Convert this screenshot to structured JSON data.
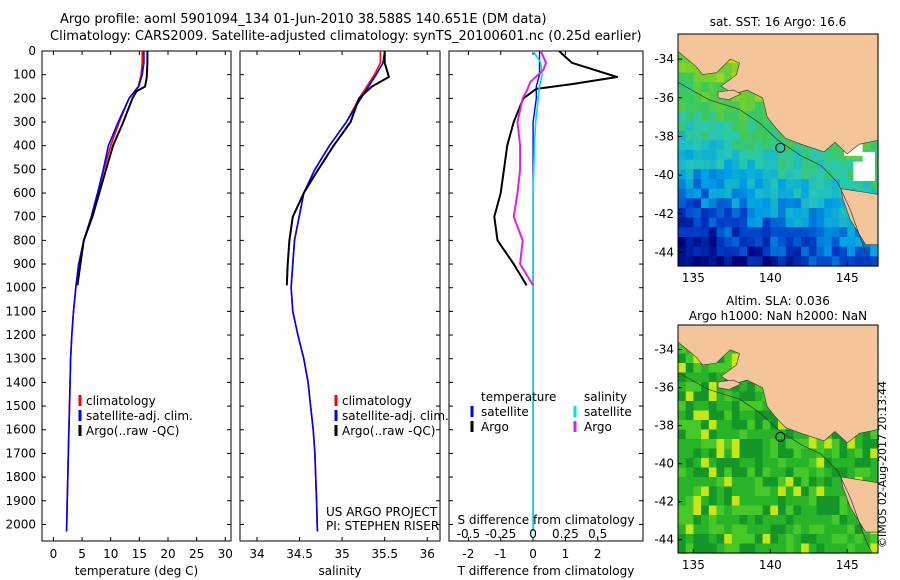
{
  "title": {
    "line1": "Argo profile: aoml 5901094_134 01-Jun-2010 38.588S 140.651E (DM data)",
    "line2": "Climatology: CARS2009. Satellite-adjusted climatology: synTS_20100601.nc (0.25d earlier)"
  },
  "credit": "©IMOS 02-Aug-2017 20:13:44",
  "colors": {
    "climatology": "#ff0000",
    "satellite": "#0000ff",
    "argo": "#000000",
    "salinity_sat": "#00e0e0",
    "salinity_argo": "#e020e0",
    "land": "#f4c49a"
  },
  "chart_data": [
    {
      "type": "line",
      "xlabel": "temperature (deg C)",
      "ylabel": "",
      "xlim": [
        -2,
        31
      ],
      "ylim": [
        2070,
        0
      ],
      "xticks": [
        "0",
        "5",
        "10",
        "15",
        "20",
        "25",
        "30"
      ],
      "yticks": [
        "0",
        "100",
        "200",
        "300",
        "400",
        "500",
        "600",
        "700",
        "800",
        "900",
        "1000",
        "1100",
        "1200",
        "1300",
        "1400",
        "1500",
        "1600",
        "1700",
        "1800",
        "1900",
        "2000"
      ],
      "legend": [
        "climatology",
        "satellite-adj. clim.",
        "Argo(..raw -QC)"
      ],
      "series": [
        {
          "name": "climatology",
          "x": [
            15.5,
            15.5,
            15.3,
            14.8,
            13.2,
            11.5,
            10,
            8.8,
            7.7,
            6.6,
            5.3,
            4.4,
            3.9,
            3.5,
            3.2,
            3,
            2.9,
            2.8,
            2.7,
            2.6,
            2.5,
            2.4,
            2.3
          ],
          "y": [
            0,
            50,
            100,
            150,
            200,
            300,
            400,
            500,
            600,
            700,
            800,
            900,
            1000,
            1100,
            1200,
            1300,
            1400,
            1500,
            1600,
            1700,
            1800,
            1900,
            2030
          ]
        },
        {
          "name": "satellite-adj. clim.",
          "x": [
            15.8,
            15.8,
            15.5,
            14.9,
            13.2,
            11.3,
            9.6,
            8.7,
            7.7,
            6.6,
            5.3,
            4.4,
            3.9,
            3.5,
            3.2,
            3,
            2.9,
            2.8,
            2.7,
            2.6,
            2.5,
            2.4,
            2.3
          ],
          "y": [
            0,
            50,
            100,
            150,
            200,
            300,
            400,
            500,
            600,
            700,
            800,
            900,
            1000,
            1100,
            1200,
            1300,
            1400,
            1500,
            1600,
            1700,
            1800,
            1900,
            2030
          ]
        },
        {
          "name": "Argo(..raw -QC)",
          "x": [
            16.4,
            16.4,
            16.3,
            16,
            14.5,
            13.8,
            12.2,
            10.4,
            9.2,
            8,
            6.8,
            5.3,
            4.7,
            4.2
          ],
          "y": [
            0,
            50,
            110,
            150,
            170,
            200,
            300,
            400,
            500,
            600,
            700,
            800,
            900,
            990
          ]
        }
      ]
    },
    {
      "type": "line",
      "xlabel": "salinity",
      "xlim": [
        33.8,
        36.15
      ],
      "ylim": [
        2070,
        0
      ],
      "xticks": [
        "34",
        "34.5",
        "35",
        "35.5",
        "36"
      ],
      "legend": [
        "climatology",
        "satellite-adj. clim.",
        "Argo(..raw -QC)"
      ],
      "annotation": [
        "US ARGO PROJECT",
        "PI: STEPHEN RISER"
      ],
      "series": [
        {
          "name": "climatology",
          "x": [
            35.45,
            35.45,
            35.38,
            35.2,
            35.05,
            34.85,
            34.68,
            34.55,
            34.44,
            34.4,
            34.42,
            34.48,
            34.55,
            34.6,
            34.63,
            34.66,
            34.68,
            34.69,
            34.7,
            34.71
          ],
          "y": [
            0,
            50,
            100,
            200,
            300,
            400,
            500,
            600,
            800,
            1000,
            1100,
            1200,
            1300,
            1400,
            1500,
            1600,
            1700,
            1800,
            1900,
            2030
          ]
        },
        {
          "name": "satellite-adj. clim.",
          "x": [
            35.5,
            35.48,
            35.4,
            35.22,
            35.05,
            34.85,
            34.68,
            34.55,
            34.44,
            34.4,
            34.42,
            34.48,
            34.55,
            34.6,
            34.63,
            34.66,
            34.68,
            34.69,
            34.7,
            34.71
          ],
          "y": [
            0,
            50,
            100,
            200,
            300,
            400,
            500,
            600,
            800,
            1000,
            1100,
            1200,
            1300,
            1400,
            1500,
            1600,
            1700,
            1800,
            1900,
            2030
          ]
        },
        {
          "name": "Argo(..raw -QC)",
          "x": [
            35.5,
            35.5,
            35.55,
            35.35,
            35.2,
            35.1,
            34.9,
            34.72,
            34.55,
            34.42,
            34.38,
            34.36,
            34.35
          ],
          "y": [
            0,
            50,
            110,
            150,
            200,
            300,
            400,
            500,
            600,
            700,
            800,
            900,
            990
          ]
        }
      ]
    },
    {
      "type": "line",
      "xlabel": "T difference from climatology",
      "xlabel_top": "S difference from climatology",
      "xlim": [
        -2.6,
        3.4
      ],
      "ylim": [
        2070,
        0
      ],
      "xticks": [
        "-2",
        "-1",
        "0",
        "1",
        "2"
      ],
      "xticks_top": [
        "-0.5",
        "-0.25",
        "0",
        "0.25",
        "0.5"
      ],
      "legend": [
        "temperature",
        "satellite",
        "Argo",
        "salinity",
        "satellite",
        "Argo"
      ],
      "series": [
        {
          "name": "satellite",
          "x": [
            0.2,
            0.2,
            0.2,
            0.1,
            0.1,
            0,
            0,
            0,
            0,
            0,
            0,
            0,
            0
          ],
          "y": [
            0,
            50,
            100,
            150,
            200,
            300,
            400,
            600,
            800,
            1000,
            1200,
            1600,
            2030
          ]
        },
        {
          "name": "Argo",
          "x": [
            0.8,
            1.2,
            2.6,
            1.2,
            0.1,
            -0.3,
            -0.6,
            -0.8,
            -0.9,
            -1,
            -1.2,
            -1.1,
            -0.6,
            -0.2
          ],
          "y": [
            0,
            50,
            110,
            140,
            160,
            200,
            300,
            400,
            500,
            600,
            700,
            800,
            900,
            990
          ]
        },
        {
          "name": "satellite",
          "x": [
            0,
            0.06,
            0.07,
            0.05,
            0.04,
            0.02,
            0.01,
            0,
            0,
            0,
            0
          ],
          "y": [
            0,
            50,
            100,
            150,
            200,
            300,
            400,
            600,
            800,
            1000,
            2030
          ]
        },
        {
          "name": "Argo",
          "x": [
            0.06,
            0.1,
            0.08,
            -0.02,
            -0.05,
            -0.08,
            -0.12,
            -0.1,
            -0.1,
            -0.12,
            -0.15,
            -0.08,
            -0.1,
            0
          ],
          "y": [
            0,
            50,
            80,
            130,
            170,
            200,
            300,
            400,
            500,
            600,
            700,
            800,
            900,
            990
          ]
        }
      ]
    },
    {
      "type": "heatmap",
      "title": "sat. SST: 16 Argo: 16.6",
      "xlim": [
        134,
        147
      ],
      "ylim": [
        -44.7,
        -32.7
      ],
      "xticks": [
        "135",
        "140",
        "145"
      ],
      "yticks": [
        "-34",
        "-36",
        "-38",
        "-40",
        "-42",
        "-44"
      ],
      "marker": {
        "lon": 140.651,
        "lat": -38.588
      }
    },
    {
      "type": "heatmap",
      "title": [
        "Altim. SLA: 0.036",
        "Argo h1000: NaN h2000: NaN"
      ],
      "xlim": [
        134,
        147
      ],
      "ylim": [
        -44.7,
        -32.7
      ],
      "xticks": [
        "135",
        "140",
        "145"
      ],
      "yticks": [
        "-34",
        "-36",
        "-38",
        "-40",
        "-42",
        "-44"
      ],
      "marker": {
        "lon": 140.651,
        "lat": -38.588
      }
    }
  ]
}
